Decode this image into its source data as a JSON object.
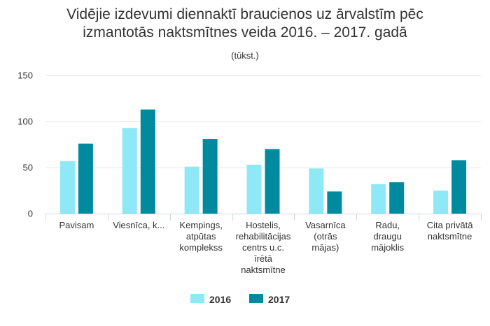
{
  "chart_data": {
    "type": "bar",
    "title_lines": [
      "Vidējie izdevumi diennaktī braucienos uz ārvalstīm pēc",
      "izmantotās naktsmītnes veida 2016. – 2017. gadā"
    ],
    "subtitle": "(tūkst.)",
    "categories": [
      [
        "Pavisam"
      ],
      [
        "Viesnīca, k..."
      ],
      [
        "Kempings,",
        "atpūtas",
        "komplekss"
      ],
      [
        "Hostelis,",
        "rehabilitācijas",
        "centrs u.c.",
        "īrētā",
        "naktsmītne"
      ],
      [
        "Vasarnīca",
        "(otrās",
        "mājas)"
      ],
      [
        "Radu,",
        "draugu",
        "mājoklis"
      ],
      [
        "Cita privātā",
        "naktsmītne"
      ]
    ],
    "series": [
      {
        "name": "2016",
        "color": "#8ee8f5",
        "values": [
          57,
          93,
          51,
          53,
          49,
          32,
          25
        ]
      },
      {
        "name": "2017",
        "color": "#008aa0",
        "values": [
          76,
          113,
          81,
          70,
          24,
          34,
          58
        ]
      }
    ],
    "yticks": [
      "0",
      "50",
      "100",
      "150"
    ],
    "ylim": [
      0,
      150
    ],
    "grid": true,
    "legend_position": "bottom"
  }
}
